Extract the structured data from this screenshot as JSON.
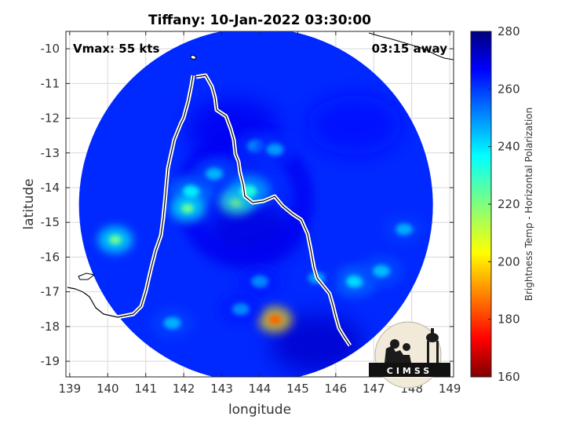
{
  "chart_data": {
    "type": "heatmap",
    "title": "Tiffany: 10-Jan-2022 03:30:00",
    "xlabel": "longitude",
    "ylabel": "latitude",
    "xlim": [
      138.9,
      149.1
    ],
    "ylim": [
      -19.45,
      -9.5
    ],
    "x_ticks": [
      "139",
      "140",
      "141",
      "142",
      "143",
      "144",
      "145",
      "146",
      "147",
      "148",
      "149"
    ],
    "y_ticks": [
      "-10",
      "-11",
      "-12",
      "-13",
      "-14",
      "-15",
      "-16",
      "-17",
      "-18",
      "-19"
    ],
    "grid": true,
    "annotations": {
      "left": "Vmax: 55 kts",
      "right": "03:15 away"
    },
    "colorbar": {
      "label": "Brightness Temp - Horizontal Polarization",
      "min": 160,
      "max": 280,
      "ticks": [
        "160",
        "180",
        "200",
        "220",
        "240",
        "260",
        "280"
      ],
      "colormap": "jet"
    },
    "swath": {
      "center_lon": 143.9,
      "center_lat": -14.5,
      "radius_deg": 5.1,
      "background_value": 262,
      "storm_center_lon": 143.6,
      "storm_center_lat": -14.3
    },
    "features": [
      {
        "lon": 142.2,
        "lat": -14.1,
        "value": 238
      },
      {
        "lon": 142.1,
        "lat": -14.6,
        "value": 222
      },
      {
        "lon": 143.4,
        "lat": -14.4,
        "value": 215
      },
      {
        "lon": 143.7,
        "lat": -14.1,
        "value": 232
      },
      {
        "lon": 142.8,
        "lat": -13.6,
        "value": 245
      },
      {
        "lon": 140.2,
        "lat": -15.5,
        "value": 222
      },
      {
        "lon": 144.4,
        "lat": -17.8,
        "value": 185
      },
      {
        "lon": 146.5,
        "lat": -16.7,
        "value": 240
      },
      {
        "lon": 147.2,
        "lat": -16.4,
        "value": 244
      },
      {
        "lon": 145.5,
        "lat": -16.6,
        "value": 248
      },
      {
        "lon": 144.0,
        "lat": -16.7,
        "value": 250
      },
      {
        "lon": 143.9,
        "lat": -12.8,
        "value": 248
      },
      {
        "lon": 144.4,
        "lat": -12.9,
        "value": 248
      },
      {
        "lon": 141.7,
        "lat": -17.9,
        "value": 245
      },
      {
        "lon": 143.5,
        "lat": -17.5,
        "value": 250
      },
      {
        "lon": 147.8,
        "lat": -15.2,
        "value": 246
      }
    ],
    "cold_regions": [
      {
        "lon": 143.3,
        "lat": -12.3,
        "value": 268
      },
      {
        "lon": 143.8,
        "lat": -15.3,
        "value": 270
      },
      {
        "lon": 145.5,
        "lat": -18.5,
        "value": 272
      },
      {
        "lon": 146.5,
        "lat": -12.2,
        "value": 266
      }
    ]
  },
  "logo": {
    "text": "CIMSS"
  }
}
